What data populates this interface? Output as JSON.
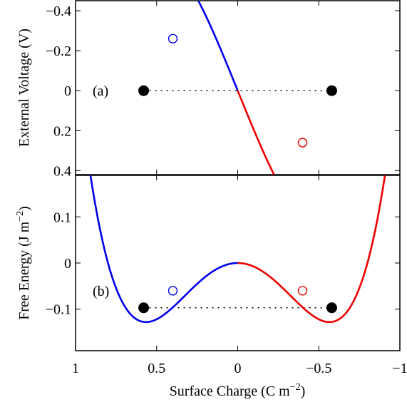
{
  "chart_data": {
    "type": "line",
    "x_axis": {
      "label_main": "Surface Charge (C m",
      "label_sup": "−2",
      "label_end": ")",
      "xlim": [
        1,
        -1
      ],
      "reversed": true,
      "ticks": [
        1,
        0.5,
        0,
        -0.5,
        -1
      ],
      "tick_labels": [
        "1",
        "0.5",
        "0",
        "−0.5",
        "−1"
      ]
    },
    "panels": [
      {
        "id": "a",
        "panel_label": "(a)",
        "ylabel_main": "External Voltage (V)",
        "ylim": [
          0.42,
          -0.45
        ],
        "reversed_y": true,
        "yticks": [
          -0.4,
          -0.2,
          0,
          0.2,
          0.4
        ],
        "ytick_labels": [
          "−0.4",
          "−0.2",
          "0",
          "0.2",
          "0.4"
        ],
        "curve_cubic": {
          "a": 2.5,
          "b": -2.0,
          "c": 0.0,
          "d": 0.0
        },
        "segments": [
          {
            "name": "blue branch",
            "color": "#0000ee",
            "x_from": 0.72,
            "x_to": 0.0
          },
          {
            "name": "red branch",
            "color": "#ee0000",
            "x_from": 0.0,
            "x_to": -0.74
          }
        ],
        "open_markers": [
          {
            "x": 0.4,
            "y": -0.26,
            "color": "#0000ee"
          },
          {
            "x": -0.4,
            "y": 0.26,
            "color": "#ee0000"
          }
        ],
        "filled_markers": [
          {
            "x": 0.58,
            "y": 0
          },
          {
            "x": -0.58,
            "y": 0
          }
        ],
        "dotted_line": {
          "x_from": 0.58,
          "x_to": -0.58,
          "y": 0
        }
      },
      {
        "id": "b",
        "panel_label": "(b)",
        "ylabel_main": "Free Energy (J m",
        "ylabel_sup": "−2",
        "ylabel_end": ")",
        "ylim": [
          -0.19,
          0.19
        ],
        "reversed_y": false,
        "yticks": [
          -0.1,
          0,
          0.1
        ],
        "ytick_labels": [
          "−0.1",
          "0",
          "0.1"
        ],
        "curve_quartic": {
          "a": -0.8,
          "b": 1.25
        },
        "segments": [
          {
            "name": "blue branch",
            "color": "#0000ee",
            "x_from": 0.91,
            "x_to": 0.0
          },
          {
            "name": "red branch",
            "color": "#ee0000",
            "x_from": 0.0,
            "x_to": -0.92
          }
        ],
        "open_markers": [
          {
            "x": 0.4,
            "y": -0.06,
            "color": "#0000ee"
          },
          {
            "x": -0.4,
            "y": -0.06,
            "color": "#ee0000"
          }
        ],
        "filled_markers": [
          {
            "x": 0.58,
            "y": -0.097
          },
          {
            "x": -0.58,
            "y": -0.097
          }
        ],
        "dotted_line": {
          "x_from": 0.58,
          "x_to": -0.58,
          "y": -0.097
        }
      }
    ]
  }
}
